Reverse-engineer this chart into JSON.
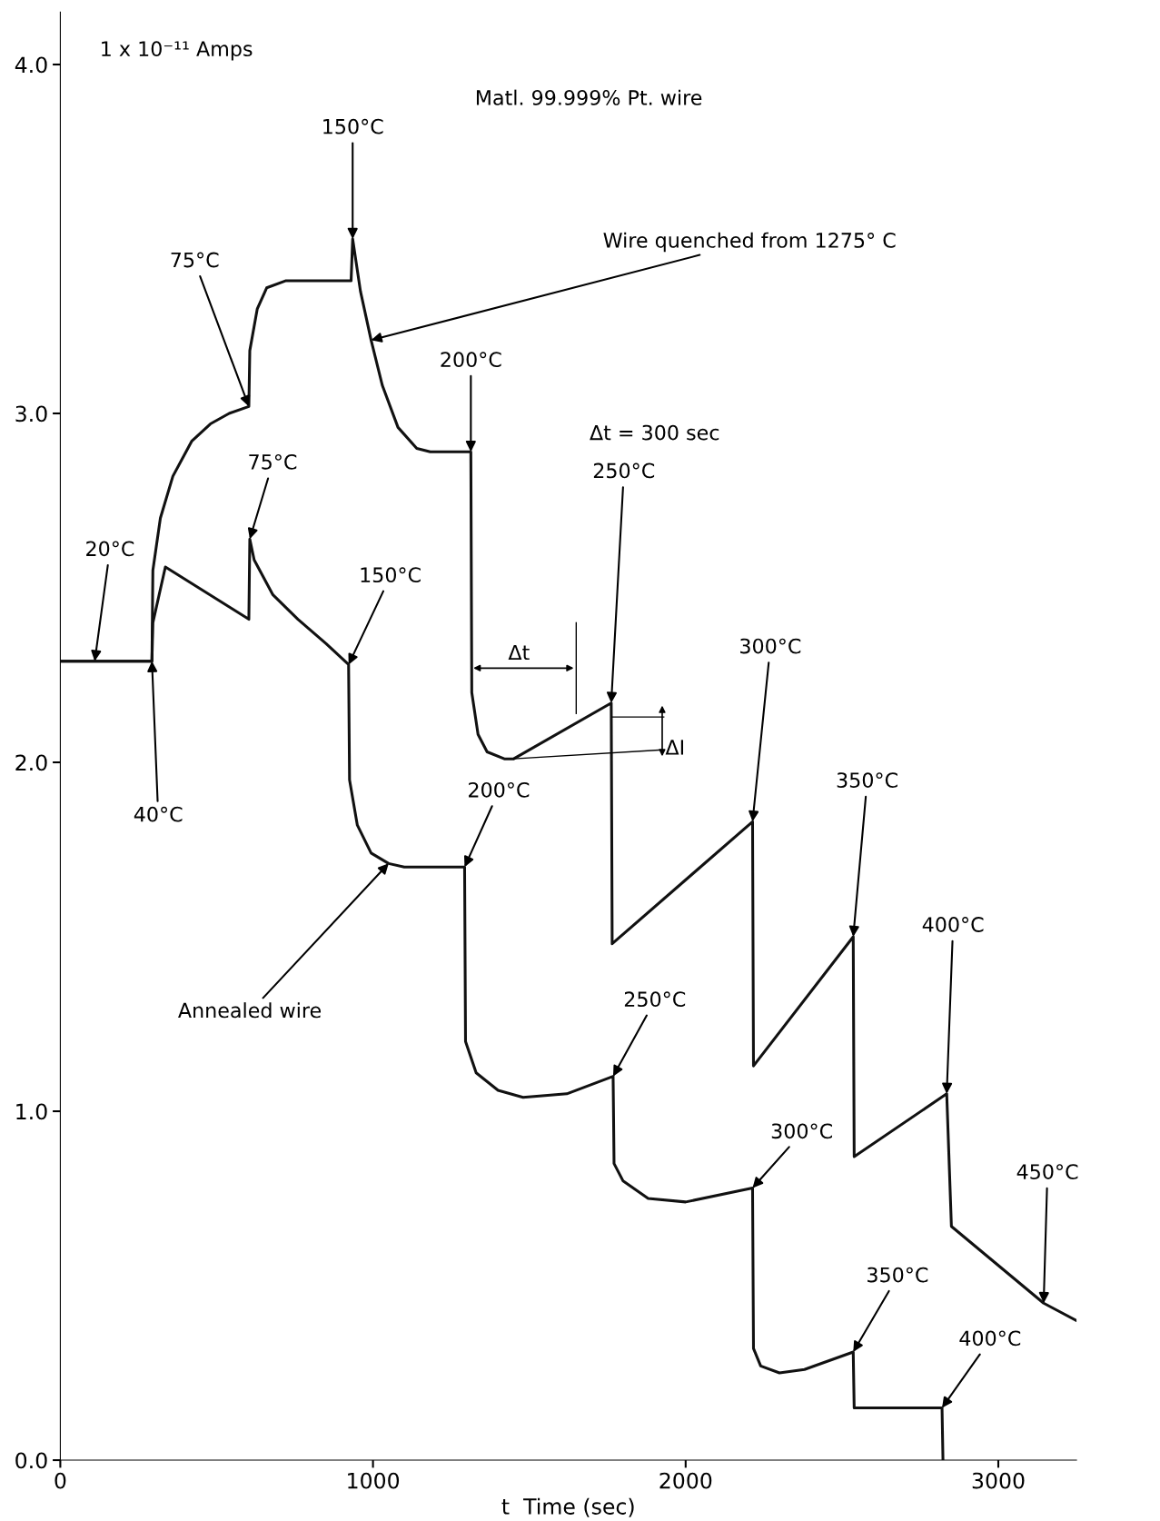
{
  "chart_data": {
    "type": "line",
    "xlabel": "t  Time (sec)",
    "xlim": [
      0,
      3250
    ],
    "ylim": [
      0,
      4.15
    ],
    "xticks": [
      0,
      1000,
      2000,
      3000
    ],
    "yticks": [
      {
        "value": 0,
        "label": "0.0"
      },
      {
        "value": 1,
        "label": "1.0"
      },
      {
        "value": 2,
        "label": "2.0"
      },
      {
        "value": 3,
        "label": "3.0"
      },
      {
        "value": 4,
        "label": "4.0"
      }
    ],
    "grid": false,
    "marker": "none",
    "line_style": "solid",
    "series": [
      {
        "color": "#111111",
        "x": [
          0,
          293,
          296,
          320,
          360,
          420,
          480,
          540,
          603,
          606,
          630,
          660,
          720,
          930,
          935,
          960,
          994,
          1030,
          1080,
          1140,
          1183,
          1313,
          1316,
          1336,
          1365,
          1420,
          1450,
          1762,
          1765,
          2214,
          2217,
          2536,
          2539,
          2835,
          2850,
          3145,
          3250
        ],
        "values": [
          2.29,
          2.29,
          2.55,
          2.7,
          2.82,
          2.92,
          2.97,
          3.0,
          3.02,
          3.18,
          3.3,
          3.36,
          3.38,
          3.38,
          3.5,
          3.35,
          3.21,
          3.08,
          2.96,
          2.9,
          2.89,
          2.89,
          2.2,
          2.08,
          2.03,
          2.01,
          2.01,
          2.17,
          1.48,
          1.83,
          1.13,
          1.5,
          0.87,
          1.05,
          0.67,
          0.45,
          0.4
        ]
      },
      {
        "color": "#111111",
        "x": [
          0,
          293,
          296,
          336,
          603,
          606,
          620,
          680,
          760,
          850,
          922,
          925,
          950,
          994,
          1050,
          1100,
          1293,
          1296,
          1330,
          1400,
          1480,
          1620,
          1768,
          1771,
          1800,
          1880,
          2000,
          2214,
          2217,
          2240,
          2300,
          2380,
          2536,
          2539,
          2820,
          2823
        ],
        "values": [
          2.29,
          2.29,
          2.4,
          2.56,
          2.41,
          2.64,
          2.58,
          2.48,
          2.41,
          2.34,
          2.28,
          1.95,
          1.82,
          1.74,
          1.71,
          1.7,
          1.7,
          1.2,
          1.11,
          1.06,
          1.04,
          1.05,
          1.1,
          0.85,
          0.8,
          0.75,
          0.74,
          0.78,
          0.32,
          0.27,
          0.25,
          0.26,
          0.31,
          0.15,
          0.15,
          0.0
        ]
      }
    ],
    "annotations": [
      "1 x 10⁻¹¹ Amps",
      "Matl. 99.999% Pt. wire",
      "Δt = 300 sec",
      "Δt",
      {
        "text": "ΔI",
        "x": 1450,
        "y": 2.01
      },
      {
        "text": "75°C",
        "x": 603,
        "y": 3.02
      },
      {
        "text": "150°C",
        "x": 935,
        "y": 3.5
      },
      {
        "text": "200°C",
        "x": 1313,
        "y": 2.89
      },
      {
        "text": "250°C",
        "x": 1762,
        "y": 2.17
      },
      {
        "text": "300°C",
        "x": 2214,
        "y": 1.83
      },
      {
        "text": "350°C",
        "x": 2536,
        "y": 1.5
      },
      {
        "text": "400°C",
        "x": 2835,
        "y": 1.05
      },
      {
        "text": "450°C",
        "x": 3145,
        "y": 0.45
      },
      {
        "text": "20°C",
        "x": 110,
        "y": 2.29
      },
      {
        "text": "40°C",
        "x": 293,
        "y": 2.29
      },
      {
        "text": "75°C",
        "x": 606,
        "y": 2.64
      },
      {
        "text": "150°C",
        "x": 922,
        "y": 2.28
      },
      {
        "text": "200°C",
        "x": 1293,
        "y": 1.7
      },
      {
        "text": "250°C",
        "x": 1768,
        "y": 1.1
      },
      {
        "text": "300°C",
        "x": 2214,
        "y": 0.78
      },
      {
        "text": "350°C",
        "x": 2536,
        "y": 0.31
      },
      {
        "text": "400°C",
        "x": 2820,
        "y": 0.15
      },
      {
        "text": "Wire quenched from 1275° C",
        "x": 994,
        "y": 3.21
      },
      {
        "text": "Annealed wire",
        "x": 1050,
        "y": 1.71
      }
    ]
  }
}
